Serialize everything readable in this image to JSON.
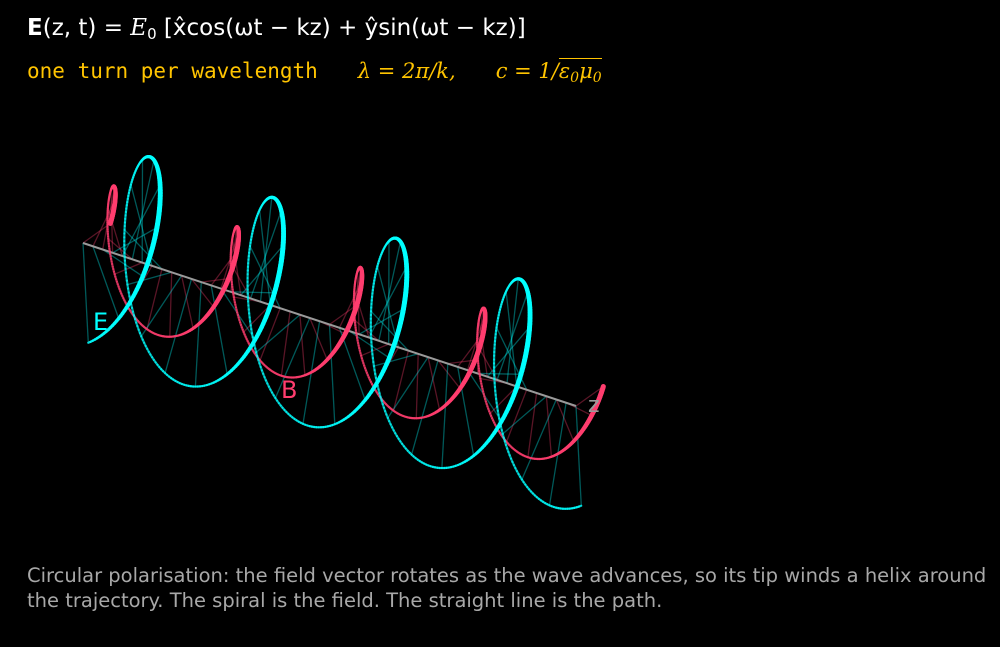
{
  "equation": {
    "lhs_bold": "E",
    "lhs_args": "(z, t) = ",
    "amp": "E",
    "amp_sub": "0",
    "body": " [x̂cos(ωt − kz) + ŷsin(ωt − kz)]"
  },
  "subtitle": {
    "mono_text": "one turn per wavelength",
    "lambda_eq": "λ = 2π/k,",
    "c_eq": "c = 1/",
    "sqrt_eps": "ε",
    "sqrt_eps_sub": "0",
    "sqrt_mu": "μ",
    "sqrt_mu_sub": "0"
  },
  "labels": {
    "e_field": "E",
    "b_field": "B",
    "axis": "z"
  },
  "caption": "Circular polarisation: the field vector rotates as the wave advances, so its tip winds a helix around the trajectory. The spiral is the field. The straight line is the path.",
  "colors": {
    "background": "#000000",
    "e_field": "#00ffff",
    "b_field": "#ff3d6e",
    "axis": "#9a9a9a",
    "subtitle": "#ffc400",
    "caption": "#a8a8a8"
  },
  "helix": {
    "turns": 4,
    "phase_shift_between_fields_deg": 90,
    "e_amplitude_ratio": 1.0,
    "b_amplitude_ratio": 0.62
  }
}
